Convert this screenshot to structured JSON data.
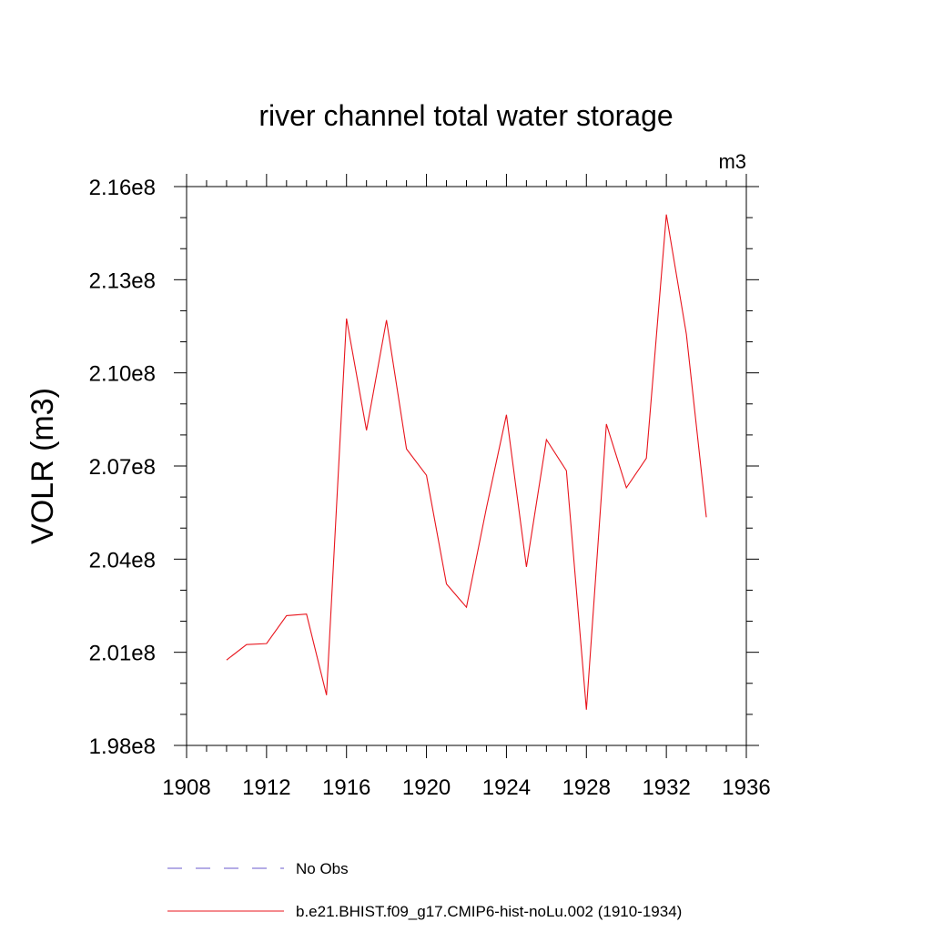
{
  "chart_data": {
    "type": "line",
    "title": "river channel total water storage",
    "units_label": "m3",
    "ylabel": "VOLR  (m3)",
    "xlabel": "",
    "xlim": [
      1908,
      1936
    ],
    "ylim": [
      198000000.0,
      216000000.0
    ],
    "x_ticks": [
      1908,
      1912,
      1916,
      1920,
      1924,
      1928,
      1932,
      1936
    ],
    "x_tick_labels": [
      "1908",
      "1912",
      "1916",
      "1920",
      "1924",
      "1928",
      "1932",
      "1936"
    ],
    "y_ticks": [
      198000000.0,
      201000000.0,
      204000000.0,
      207000000.0,
      210000000.0,
      213000000.0,
      216000000.0
    ],
    "y_tick_labels": [
      "1.98e8",
      "2.01e8",
      "2.04e8",
      "2.07e8",
      "2.10e8",
      "2.13e8",
      "2.16e8"
    ],
    "grid": false,
    "legend_position": "bottom",
    "series": [
      {
        "name": "No Obs",
        "color": "#6a5acd",
        "style": "dashed",
        "x": [],
        "values": []
      },
      {
        "name": "b.e21.BHIST.f09_g17.CMIP6-hist-noLu.002 (1910-1934)",
        "color": "#e8141c",
        "style": "solid",
        "x": [
          1910,
          1911,
          1912,
          1913,
          1914,
          1915,
          1916,
          1917,
          1918,
          1919,
          1920,
          1921,
          1922,
          1923,
          1924,
          1925,
          1926,
          1927,
          1928,
          1929,
          1930,
          1931,
          1932,
          1933,
          1934
        ],
        "values": [
          200750000.0,
          201250000.0,
          201280000.0,
          202180000.0,
          202230000.0,
          199620000.0,
          211750000.0,
          208150000.0,
          211700000.0,
          207550000.0,
          206700000.0,
          203200000.0,
          202450000.0,
          205650000.0,
          208650000.0,
          203750000.0,
          207850000.0,
          206850000.0,
          199150000.0,
          208350000.0,
          206300000.0,
          207250000.0,
          215100000.0,
          211250000.0,
          205350000.0
        ]
      }
    ]
  }
}
